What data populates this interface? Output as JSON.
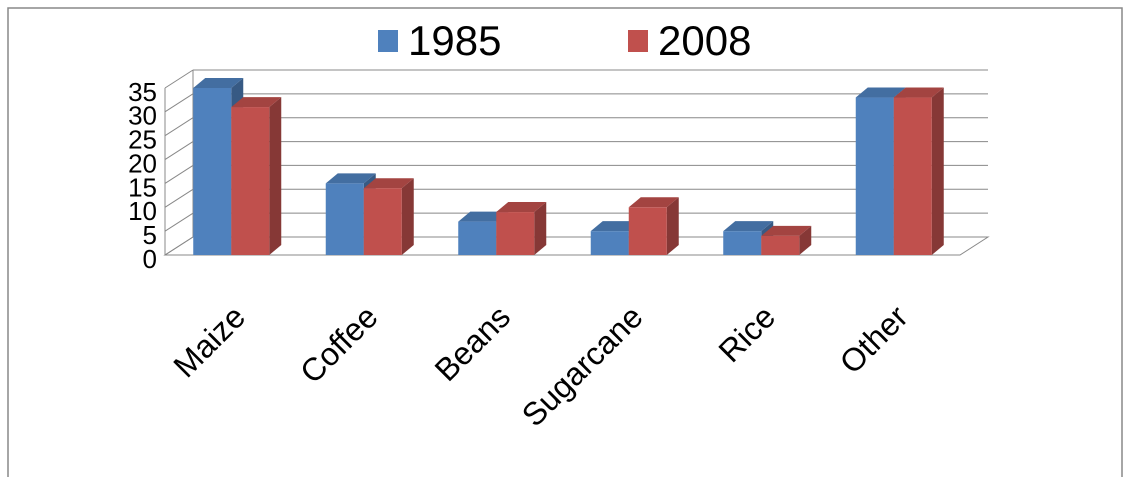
{
  "chart_data": {
    "type": "bar3d",
    "categories": [
      "Maize",
      "Coffee",
      "Beans",
      "Sugarcane",
      "Rice",
      "Other"
    ],
    "series": [
      {
        "name": "1985",
        "color": "#4f81bd",
        "values": [
          35,
          15,
          7,
          5,
          5,
          33
        ]
      },
      {
        "name": "2008",
        "color": "#c0504d",
        "values": [
          31,
          14,
          9,
          10,
          4,
          33
        ]
      }
    ],
    "ylim": [
      0,
      35
    ],
    "yticks": [
      0,
      5,
      10,
      15,
      20,
      25,
      30,
      35
    ],
    "grid": true,
    "legend": "top"
  }
}
